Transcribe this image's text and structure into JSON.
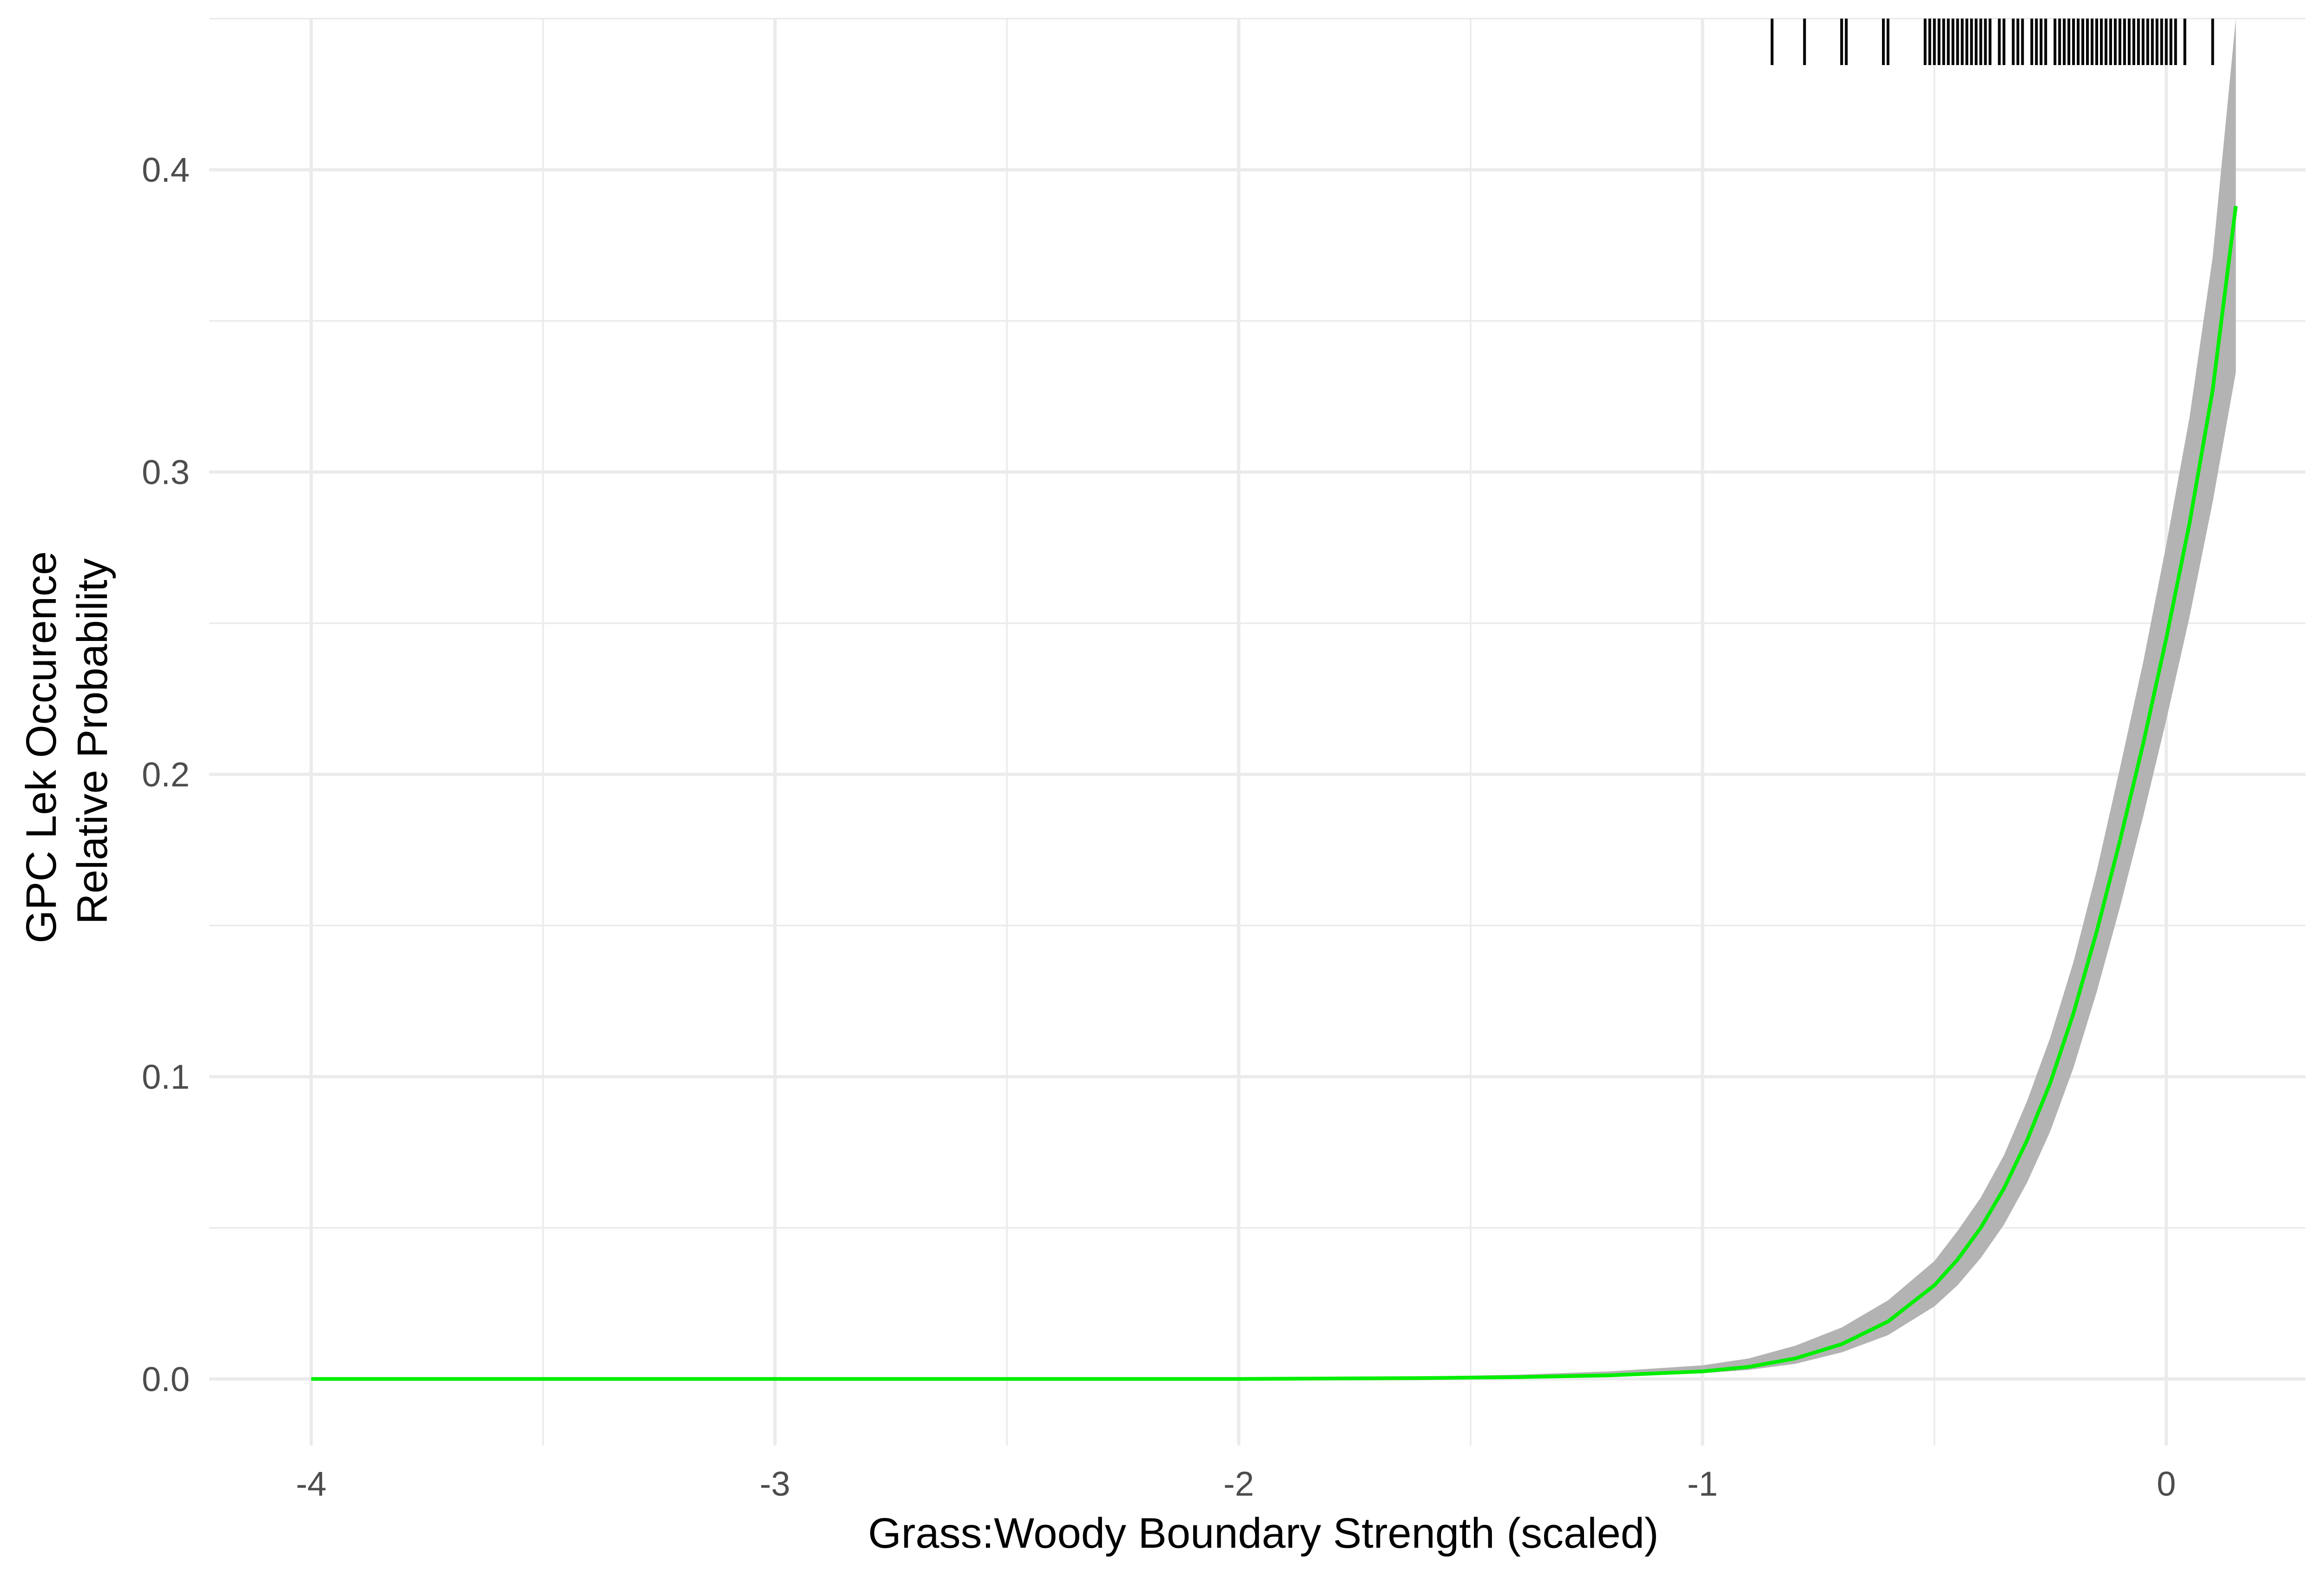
{
  "chart_data": {
    "type": "line",
    "title": "",
    "xlabel": "Grass:Woody Boundary Strength (scaled)",
    "ylabel_lines": [
      "GPC Lek Occurence",
      "Relative Probability"
    ],
    "xlim": [
      -4.22,
      0.3
    ],
    "ylim": [
      -0.022,
      0.45
    ],
    "x_ticks": [
      -4,
      -3,
      -2,
      -1,
      0
    ],
    "x_tick_labels": [
      "-4",
      "-3",
      "-2",
      "-1",
      "0"
    ],
    "x_minor_ticks": [
      -3.5,
      -2.5,
      -1.5,
      -0.5
    ],
    "y_ticks": [
      0,
      0.1,
      0.2,
      0.3,
      0.4
    ],
    "y_tick_labels": [
      "0.0",
      "0.1",
      "0.2",
      "0.3",
      "0.4"
    ],
    "y_minor_ticks": [
      0.05,
      0.15,
      0.25,
      0.35,
      0.45
    ],
    "grid": true,
    "series": [
      {
        "color": "#00ee00",
        "x": [
          -4.0,
          -3.0,
          -2.0,
          -1.6,
          -1.4,
          -1.2,
          -1.0,
          -0.9,
          -0.8,
          -0.7,
          -0.6,
          -0.5,
          -0.45,
          -0.4,
          -0.35,
          -0.3,
          -0.25,
          -0.2,
          -0.15,
          -0.1,
          -0.05,
          0.0,
          0.05,
          0.1,
          0.15
        ],
        "y": [
          0.0,
          0.0,
          0.0,
          0.0003,
          0.0006,
          0.0012,
          0.0025,
          0.004,
          0.0068,
          0.0115,
          0.019,
          0.031,
          0.0395,
          0.05,
          0.063,
          0.079,
          0.098,
          0.121,
          0.148,
          0.178,
          0.21,
          0.245,
          0.283,
          0.327,
          0.388
        ],
        "lower": [
          0.0,
          0.0,
          0.0,
          0.0002,
          0.0004,
          0.0009,
          0.0019,
          0.003,
          0.005,
          0.0088,
          0.0145,
          0.024,
          0.031,
          0.04,
          0.051,
          0.065,
          0.082,
          0.103,
          0.128,
          0.156,
          0.186,
          0.218,
          0.252,
          0.29,
          0.333
        ],
        "upper": [
          0.0,
          0.0,
          0.0002,
          0.0008,
          0.0014,
          0.0025,
          0.0045,
          0.0068,
          0.011,
          0.017,
          0.026,
          0.039,
          0.049,
          0.06,
          0.074,
          0.092,
          0.113,
          0.138,
          0.168,
          0.202,
          0.237,
          0.276,
          0.318,
          0.371,
          0.45
        ]
      }
    ],
    "ribbon_color": "#b3b3b3",
    "rug_x": [
      -0.85,
      -0.78,
      -0.7,
      -0.69,
      -0.61,
      -0.6,
      -0.52,
      -0.51,
      -0.5,
      -0.49,
      -0.48,
      -0.47,
      -0.46,
      -0.45,
      -0.44,
      -0.43,
      -0.42,
      -0.41,
      -0.4,
      -0.39,
      -0.38,
      -0.36,
      -0.35,
      -0.33,
      -0.32,
      -0.31,
      -0.29,
      -0.28,
      -0.27,
      -0.26,
      -0.24,
      -0.23,
      -0.22,
      -0.21,
      -0.2,
      -0.19,
      -0.18,
      -0.17,
      -0.16,
      -0.15,
      -0.14,
      -0.13,
      -0.12,
      -0.11,
      -0.1,
      -0.09,
      -0.08,
      -0.07,
      -0.06,
      -0.05,
      -0.04,
      -0.03,
      -0.02,
      -0.01,
      0.0,
      0.01,
      0.02,
      0.04,
      0.1
    ]
  }
}
